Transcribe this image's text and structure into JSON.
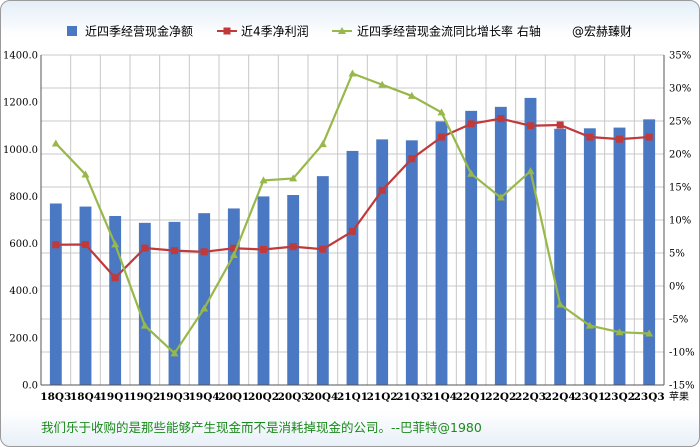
{
  "chart_data": {
    "type": "bar+line",
    "categories": [
      "18Q3",
      "18Q4",
      "19Q1",
      "19Q2",
      "19Q3",
      "19Q4",
      "20Q1",
      "20Q2",
      "20Q3",
      "20Q4",
      "21Q1",
      "21Q2",
      "21Q3",
      "21Q4",
      "22Q1",
      "22Q2",
      "22Q3",
      "22Q4",
      "23Q1",
      "23Q2",
      "23Q3"
    ],
    "x_unit": "苹果",
    "series": [
      {
        "name": "近四季经营现金净额",
        "kind": "bar",
        "axis": "left",
        "color": "#4a78c2",
        "values": [
          770,
          757,
          717,
          688,
          692,
          729,
          749,
          800,
          806,
          886,
          993,
          1042,
          1038,
          1118,
          1163,
          1180,
          1218,
          1087,
          1089,
          1092,
          1127
        ]
      },
      {
        "name": "近4季净利润",
        "kind": "line",
        "axis": "left",
        "color": "#c0393b",
        "marker": "square",
        "values": [
          595,
          596,
          455,
          581,
          570,
          565,
          580,
          575,
          587,
          576,
          652,
          826,
          960,
          1052,
          1108,
          1130,
          1100,
          1103,
          1052,
          1043,
          1052
        ]
      },
      {
        "name": "近四季经营现金流同比增长率 右轴",
        "kind": "line",
        "axis": "right",
        "color": "#98b84a",
        "marker": "triangle",
        "unit": "%",
        "values": [
          21.6,
          16.9,
          6.3,
          -6.0,
          -10.2,
          -3.4,
          4.7,
          16.0,
          16.3,
          21.5,
          32.2,
          30.5,
          28.8,
          26.3,
          17.0,
          13.4,
          17.4,
          -2.8,
          -6.0,
          -7.0,
          -7.2
        ]
      }
    ],
    "left_axis": {
      "ylim": [
        0,
        1400
      ],
      "ticks": [
        "0.0",
        "200.0",
        "400.0",
        "600.0",
        "800.0",
        "1000.0",
        "1200.0",
        "1400.0"
      ]
    },
    "right_axis": {
      "ylim": [
        -15,
        35
      ],
      "ticks": [
        "-15%",
        "-10%",
        "-5%",
        "0%",
        "5%",
        "10%",
        "15%",
        "20%",
        "25%",
        "30%",
        "35%"
      ]
    },
    "legend": {
      "placement": "top",
      "extra_text": "@宏赫臻财"
    },
    "grid": true
  },
  "footer": {
    "quote": "我们乐于收购的是那些能够产生现金而不是消耗掉现金的公司。--巴菲特@1980"
  }
}
